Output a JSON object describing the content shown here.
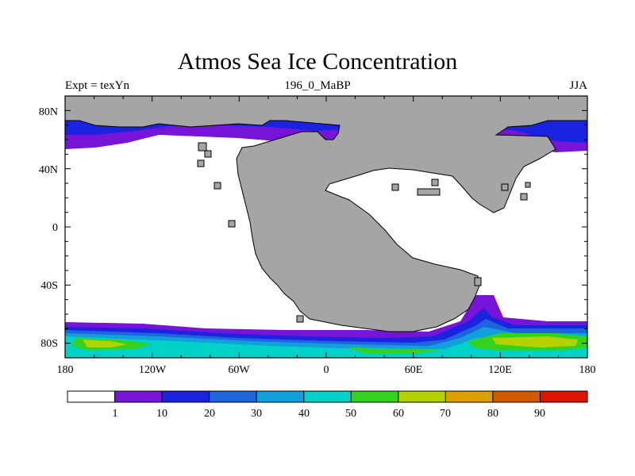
{
  "title": "Atmos Sea Ice Concentration",
  "left_string": "Expt = texYn",
  "center_string": "196_0_MaBP",
  "right_string": "JJA",
  "map": {
    "projection": "cylindrical equidistant",
    "lon_ticks": [
      "180",
      "120W",
      "60W",
      "0",
      "60E",
      "120E",
      "180"
    ],
    "lat_ticks": [
      "80N",
      "40N",
      "0",
      "40S",
      "80S"
    ],
    "land_color": "#a5a5a5",
    "ocean_no_ice_color": "#ffffff"
  },
  "colorbar": {
    "labels": [
      "1",
      "10",
      "20",
      "30",
      "40",
      "50",
      "60",
      "70",
      "80",
      "90"
    ],
    "colors": [
      "#ffffff",
      "#7614d8",
      "#1a24e0",
      "#1e64dc",
      "#10a0dc",
      "#00d2c8",
      "#32d21e",
      "#b4d200",
      "#dca000",
      "#d25a00",
      "#dc1400"
    ]
  }
}
